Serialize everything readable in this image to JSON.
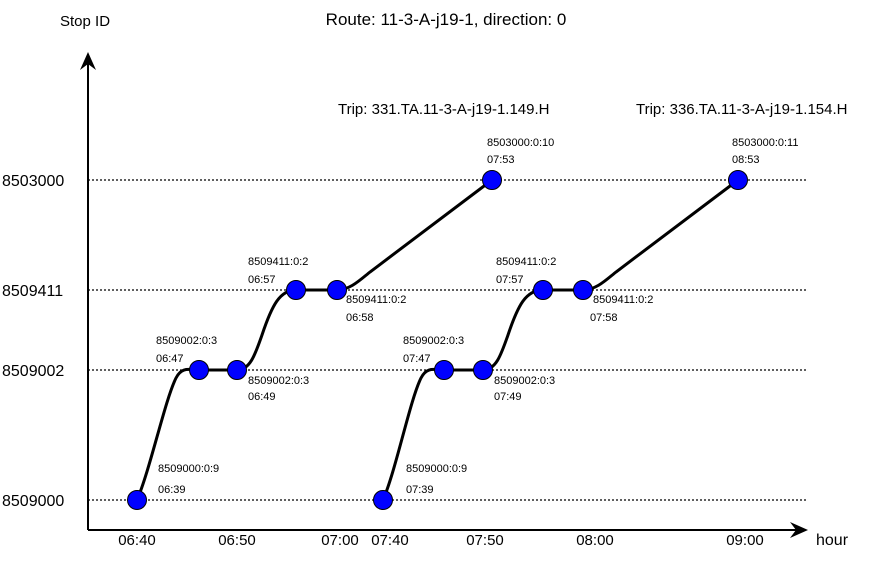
{
  "title": "Route: 11-3-A-j19-1, direction: 0",
  "y_axis_label": "Stop ID",
  "x_axis_label": "hour",
  "stops": [
    "8503000",
    "8509411",
    "8509002",
    "8509000"
  ],
  "time_ticks": [
    "06:40",
    "06:50",
    "07:00",
    "07:40",
    "07:50",
    "08:00",
    "09:00"
  ],
  "trips": [
    {
      "label": "Trip: 331.TA.11-3-A-j19-1.149.H",
      "events": [
        {
          "id": "8509000:0:9",
          "time": "06:39"
        },
        {
          "id": "8509002:0:3",
          "time": "06:47"
        },
        {
          "id": "8509002:0:3",
          "time": "06:49"
        },
        {
          "id": "8509411:0:2",
          "time": "06:57"
        },
        {
          "id": "8509411:0:2",
          "time": "06:58"
        },
        {
          "id": "8503000:0:10",
          "time": "07:53"
        }
      ]
    },
    {
      "label": "Trip: 336.TA.11-3-A-j19-1.154.H",
      "events": [
        {
          "id": "8509000:0:9",
          "time": "07:39"
        },
        {
          "id": "8509002:0:3",
          "time": "07:47"
        },
        {
          "id": "8509002:0:3",
          "time": "07:49"
        },
        {
          "id": "8509411:0:2",
          "time": "07:57"
        },
        {
          "id": "8509411:0:2",
          "time": "07:58"
        },
        {
          "id": "8503000:0:11",
          "time": "08:53"
        }
      ]
    }
  ],
  "colors": {
    "node_fill": "#0000ff",
    "line": "#000000",
    "grid": "#000000"
  }
}
